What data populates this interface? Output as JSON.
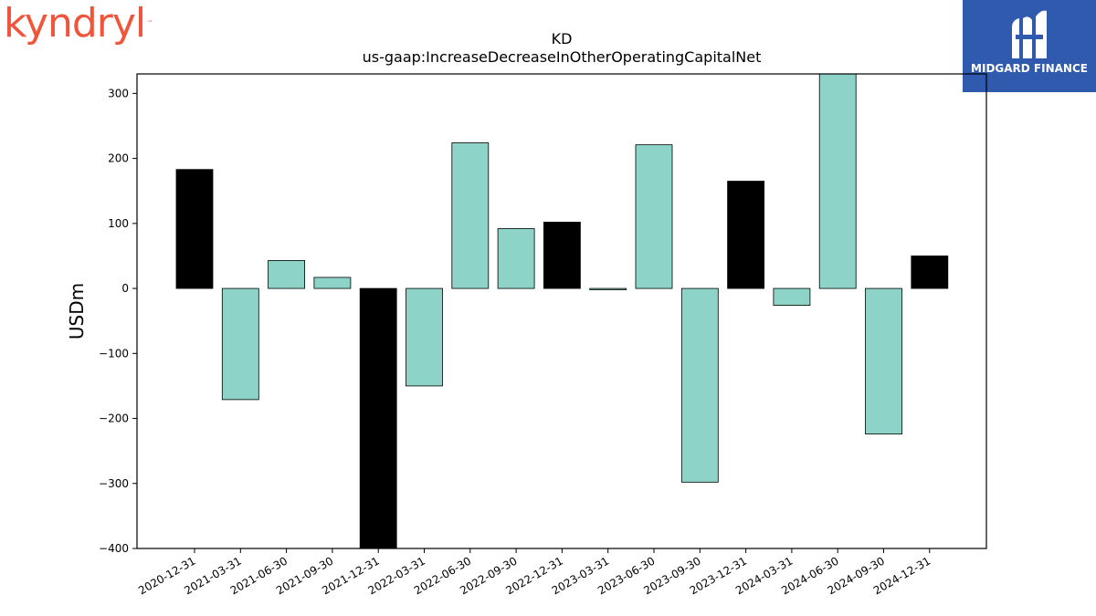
{
  "brand": {
    "name": "kyndryl",
    "trademark": "™"
  },
  "partner": {
    "name": "MIDGARD FINANCE"
  },
  "colors": {
    "highlight": "#000000",
    "normal": "#8dd3c7",
    "edge": "#000000"
  },
  "chart_data": {
    "type": "bar",
    "title": "KD",
    "subtitle": "us-gaap:IncreaseDecreaseInOtherOperatingCapitalNet",
    "ylabel": "USDm",
    "xlabel": "",
    "ylim": [
      -400,
      330
    ],
    "yticks": [
      -400,
      -300,
      -200,
      -100,
      0,
      100,
      200,
      300
    ],
    "grid": false,
    "categories": [
      "2020-12-31",
      "2021-03-31",
      "2021-06-30",
      "2021-09-30",
      "2021-12-31",
      "2022-03-31",
      "2022-06-30",
      "2022-09-30",
      "2022-12-31",
      "2023-03-31",
      "2023-06-30",
      "2023-09-30",
      "2023-12-31",
      "2024-03-31",
      "2024-06-30",
      "2024-09-30",
      "2024-12-31"
    ],
    "values": [
      183,
      -171,
      43,
      17,
      -412,
      -150,
      224,
      92,
      102,
      -2,
      221,
      -298,
      165,
      -26,
      340,
      -224,
      50
    ],
    "highlighted": [
      true,
      false,
      false,
      false,
      true,
      false,
      false,
      false,
      true,
      false,
      false,
      false,
      true,
      false,
      false,
      false,
      true
    ]
  }
}
